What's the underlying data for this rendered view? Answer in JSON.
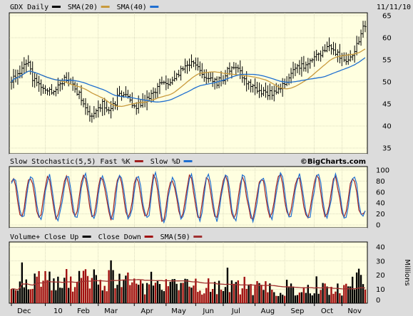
{
  "header": {
    "price_legend": [
      {
        "label": "GDX Daily",
        "color": "#000000"
      },
      {
        "label": "SMA(20)",
        "color": "#c89a3c"
      },
      {
        "label": "SMA(40)",
        "color": "#1f6fd0"
      }
    ],
    "date": "11/11/10"
  },
  "stoch_header": {
    "legend": [
      {
        "label": "Slow Stochastic(5,5) Fast %K",
        "color": "#a02020"
      },
      {
        "label": "Slow %D",
        "color": "#1f6fd0"
      }
    ],
    "watermark": "©BigCharts.com"
  },
  "volume_header": {
    "legend": [
      {
        "label": "Volume+ Close Up",
        "color": "#000000"
      },
      {
        "label": "Close Down",
        "color": "#a01010"
      },
      {
        "label": "SMA(50)",
        "color": "#a03030"
      }
    ],
    "unit": "Millions"
  },
  "chart_data": [
    {
      "type": "ohlc",
      "title": "GDX Daily",
      "ylim": [
        35,
        65
      ],
      "yticks": [
        35,
        40,
        45,
        50,
        55,
        60,
        65
      ],
      "grid": true,
      "legend_placement": "top-left",
      "close_knots": [
        [
          0,
          50.5
        ],
        [
          5,
          52.5
        ],
        [
          8,
          55
        ],
        [
          10,
          51
        ],
        [
          14,
          49
        ],
        [
          18,
          48
        ],
        [
          22,
          49
        ],
        [
          26,
          51
        ],
        [
          29,
          49.5
        ],
        [
          32,
          47
        ],
        [
          35,
          44
        ],
        [
          38,
          42
        ],
        [
          40,
          43
        ],
        [
          43,
          45
        ],
        [
          46,
          44
        ],
        [
          49,
          45.5
        ],
        [
          52,
          47.5
        ],
        [
          56,
          46
        ],
        [
          58,
          44
        ],
        [
          62,
          45.5
        ],
        [
          66,
          47
        ],
        [
          70,
          49
        ],
        [
          74,
          50
        ],
        [
          78,
          52
        ],
        [
          82,
          53
        ],
        [
          85,
          55
        ],
        [
          88,
          53
        ],
        [
          91,
          50.5
        ],
        [
          94,
          51
        ],
        [
          97,
          50
        ],
        [
          100,
          51
        ],
        [
          103,
          53
        ],
        [
          106,
          54
        ],
        [
          109,
          51.5
        ],
        [
          112,
          49.5
        ],
        [
          115,
          48.5
        ],
        [
          118,
          48
        ],
        [
          121,
          47
        ],
        [
          124,
          48
        ],
        [
          127,
          49
        ],
        [
          130,
          50
        ],
        [
          133,
          52
        ],
        [
          136,
          53.5
        ],
        [
          139,
          54
        ],
        [
          142,
          55.5
        ],
        [
          145,
          56
        ],
        [
          148,
          57
        ],
        [
          151,
          58
        ],
        [
          154,
          56
        ],
        [
          157,
          55
        ],
        [
          160,
          56
        ],
        [
          163,
          58
        ],
        [
          166,
          63
        ]
      ],
      "sma_series": [
        {
          "name": "SMA(20)",
          "period": 20
        },
        {
          "name": "SMA(40)",
          "period": 40
        }
      ],
      "x_labels": [
        {
          "label": "Dec",
          "day": 6
        },
        {
          "label": "10",
          "day": 22
        },
        {
          "label": "Feb",
          "day": 34
        },
        {
          "label": "Mar",
          "day": 47
        },
        {
          "label": "Apr",
          "day": 64
        },
        {
          "label": "May",
          "day": 79
        },
        {
          "label": "Jun",
          "day": 93
        },
        {
          "label": "Jul",
          "day": 106
        },
        {
          "label": "Aug",
          "day": 121
        },
        {
          "label": "Sep",
          "day": 135
        },
        {
          "label": "Oct",
          "day": 149
        },
        {
          "label": "Nov",
          "day": 162
        }
      ],
      "total_days": 168
    },
    {
      "type": "line",
      "title": "Slow Stochastic(5,5)",
      "ylim": [
        0,
        100
      ],
      "yticks": [
        0,
        20,
        40,
        60,
        80,
        100
      ],
      "grid": true,
      "series": [
        {
          "name": "Fast %K",
          "color": "#a02020"
        },
        {
          "name": "Slow %D",
          "color": "#1f6fd0"
        }
      ]
    },
    {
      "type": "bar",
      "title": "Volume",
      "ylabel": "Millions",
      "ylim": [
        0,
        40
      ],
      "yticks": [
        0,
        10,
        20,
        30,
        40
      ],
      "grid": true,
      "series": [
        {
          "name": "Close Up",
          "color": "#000000"
        },
        {
          "name": "Close Down",
          "color": "#a01010"
        },
        {
          "name": "SMA(50)",
          "color": "#a03030"
        }
      ]
    }
  ]
}
